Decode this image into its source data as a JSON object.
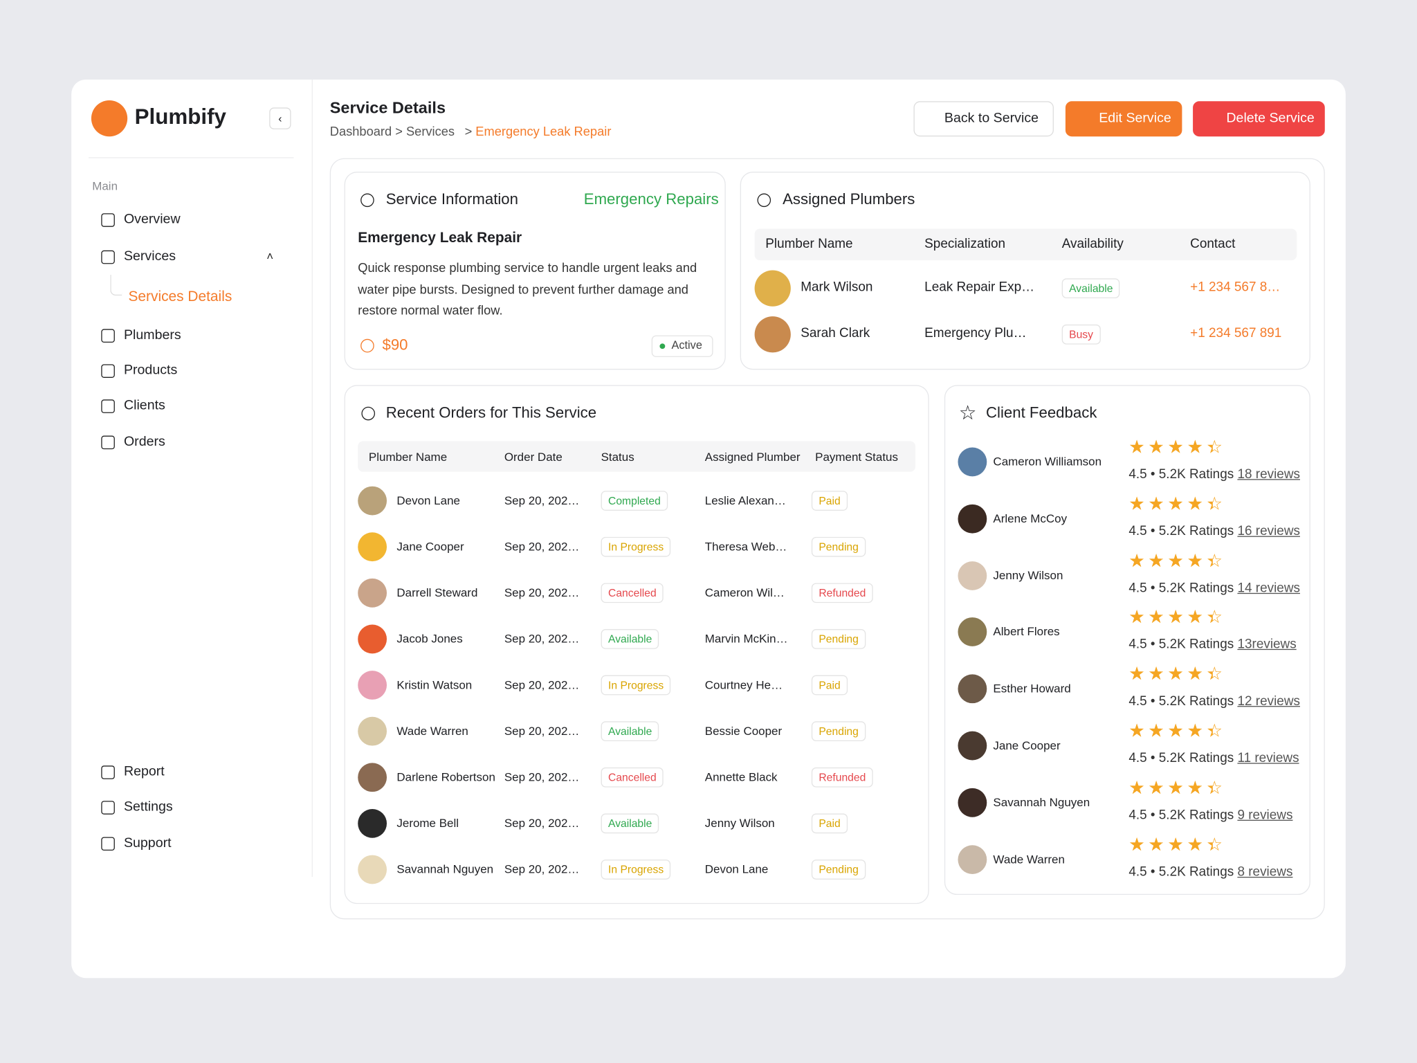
{
  "sidebar": {
    "brand": "Plumbify",
    "section": "Main",
    "nav": [
      "Overview",
      "Services",
      "Services Details",
      "Plumbers",
      "Products",
      "Clients",
      "Orders"
    ],
    "bottom": [
      "Report",
      "Settings",
      "Support"
    ]
  },
  "header": {
    "title": "Service Details",
    "separator": ">",
    "breadcrumb": [
      "Dashboard",
      "Services",
      "Emergency Leak Repair"
    ],
    "buttons": [
      "Back to Service",
      "Edit Service",
      "Delete Service"
    ]
  },
  "service_info": {
    "title": "Service Information",
    "tag": "Emergency Repairs",
    "name": "Emergency Leak Repair",
    "description": "Quick response plumbing service to handle urgent leaks and water pipe bursts. Designed to prevent further damage and restore normal water flow.",
    "price": "$90",
    "status": "Active"
  },
  "plumbers": {
    "title": "Assigned Plumbers",
    "columns": [
      "Plumber Name",
      "Specialization",
      "Availability",
      "Contact"
    ],
    "rows": [
      [
        "Mark Wilson",
        "Leak Repair Exp…",
        "Available",
        "+1 234 567 8…"
      ],
      [
        "Sarah Clark",
        "Emergency Plu…",
        "Busy",
        "+1 234 567 891"
      ]
    ]
  },
  "orders": {
    "title": "Recent Orders for This Service",
    "columns": [
      "Plumber Name",
      "Order Date",
      "Status",
      "Assigned Plumber",
      "Payment Status"
    ],
    "rows": [
      [
        "Devon Lane",
        "Sep 20, 202…",
        "Completed",
        "Leslie Alexan…",
        "Paid"
      ],
      [
        "Jane Cooper",
        "Sep 20, 202…",
        "In Progress",
        "Theresa Web…",
        "Pending"
      ],
      [
        "Darrell Steward",
        "Sep 20, 202…",
        "Cancelled",
        "Cameron Wil…",
        "Refunded"
      ],
      [
        "Jacob Jones",
        "Sep 20, 202…",
        "Available",
        "Marvin McKin…",
        "Pending"
      ],
      [
        "Kristin Watson",
        "Sep 20, 202…",
        "In Progress",
        "Courtney He…",
        "Paid"
      ],
      [
        "Wade Warren",
        "Sep 20, 202…",
        "Available",
        "Bessie Cooper",
        "Pending"
      ],
      [
        "Darlene Robertson",
        "Sep 20, 202…",
        "Cancelled",
        "Annette Black",
        "Refunded"
      ],
      [
        "Jerome Bell",
        "Sep 20, 202…",
        "Available",
        "Jenny Wilson",
        "Paid"
      ],
      [
        "Savannah Nguyen",
        "Sep 20, 202…",
        "In Progress",
        "Devon Lane",
        "Pending"
      ]
    ]
  },
  "badge_colors": {
    "Completed": "#2fa84f",
    "In Progress": "#d9a400",
    "Cancelled": "#e5484d",
    "Available": "#2fa84f",
    "Pending": "#d9a400",
    "Paid": "#d9a400",
    "Refunded": "#e5484d",
    "Busy": "#e5484d"
  },
  "feedback": {
    "title": "Client Feedback",
    "separator": "•",
    "items": [
      {
        "name": "Cameron Williamson",
        "rating": 4.5,
        "ratings": "5.2K Ratings",
        "reviews": "18 reviews"
      },
      {
        "name": "Arlene McCoy",
        "rating": 4.5,
        "ratings": "5.2K Ratings",
        "reviews": "16 reviews"
      },
      {
        "name": "Jenny Wilson",
        "rating": 4.5,
        "ratings": "5.2K Ratings",
        "reviews": "14 reviews"
      },
      {
        "name": "Albert Flores",
        "rating": 4.5,
        "ratings": "5.2K Ratings",
        "reviews": "13reviews"
      },
      {
        "name": "Esther Howard",
        "rating": 4.5,
        "ratings": "5.2K Ratings",
        "reviews": "12 reviews"
      },
      {
        "name": "Jane Cooper",
        "rating": 4.5,
        "ratings": "5.2K Ratings",
        "reviews": "11 reviews"
      },
      {
        "name": "Savannah Nguyen",
        "rating": 4.5,
        "ratings": "5.2K Ratings",
        "reviews": "9 reviews"
      },
      {
        "name": "Wade Warren",
        "rating": 4.5,
        "ratings": "5.2K Ratings",
        "reviews": "8 reviews"
      }
    ]
  }
}
